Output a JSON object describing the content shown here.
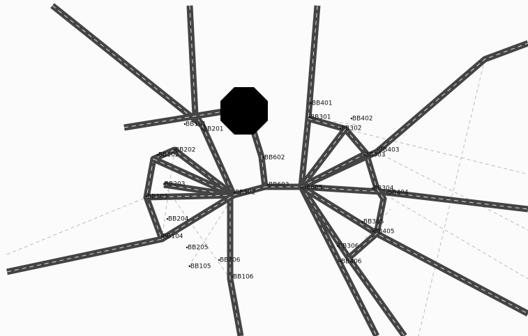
{
  "nodes": [
    {
      "label": "BB101"
    },
    {
      "label": "BB201"
    },
    {
      "label": "BB102"
    },
    {
      "label": "BB202"
    },
    {
      "label": "BB203"
    },
    {
      "label": "BB103"
    },
    {
      "label": "BB204"
    },
    {
      "label": "BB104"
    },
    {
      "label": "BB205"
    },
    {
      "label": "BB105"
    },
    {
      "label": "BB206"
    },
    {
      "label": "BB106"
    },
    {
      "label": "BB602"
    },
    {
      "label": "BB502"
    },
    {
      "label": "BB603"
    },
    {
      "label": "BB605"
    },
    {
      "label": "BB401"
    },
    {
      "label": "BB301"
    },
    {
      "label": "BB402"
    },
    {
      "label": "BB302"
    },
    {
      "label": "BB403"
    },
    {
      "label": "BB303"
    },
    {
      "label": "BB404"
    },
    {
      "label": "BB304"
    },
    {
      "label": "BB305"
    },
    {
      "label": "BB405"
    },
    {
      "label": "BB306"
    },
    {
      "label": "BB406"
    }
  ]
}
